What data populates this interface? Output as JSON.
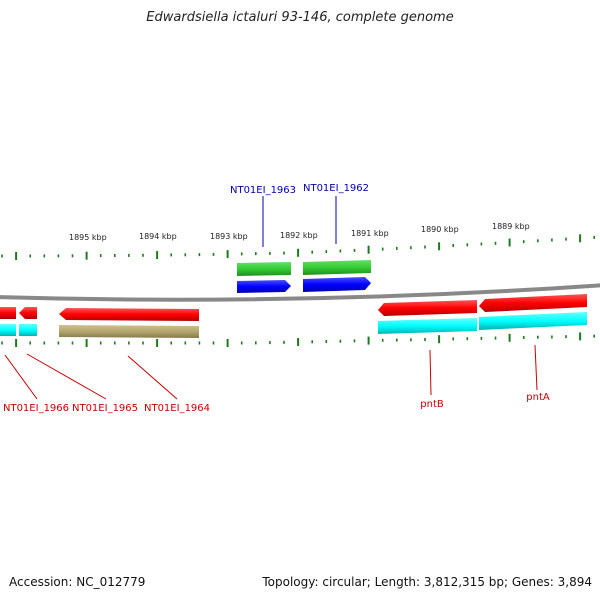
{
  "title": "Edwardsiella ictaluri 93-146, complete genome",
  "footer": {
    "accession": "Accession: NC_012779",
    "summary": "Topology: circular; Length: 3,812,315 bp; Genes: 3,894"
  },
  "ruler": [
    {
      "label": "1895 kbp",
      "kbp": 1895
    },
    {
      "label": "1894 kbp",
      "kbp": 1894
    },
    {
      "label": "1893 kbp",
      "kbp": 1893
    },
    {
      "label": "1892 kbp",
      "kbp": 1892
    },
    {
      "label": "1891 kbp",
      "kbp": 1891
    },
    {
      "label": "1890 kbp",
      "kbp": 1890
    },
    {
      "label": "1889 kbp",
      "kbp": 1889
    }
  ],
  "genes": [
    {
      "name": "NT01EI_1966",
      "color": "#cc0000"
    },
    {
      "name": "NT01EI_1965",
      "color": "#cc0000"
    },
    {
      "name": "NT01EI_1964",
      "color": "#cc0000"
    },
    {
      "name": "NT01EI_1963",
      "color": "#0000aa"
    },
    {
      "name": "NT01EI_1962",
      "color": "#0000aa"
    },
    {
      "name": "pntB",
      "color": "#cc0000"
    },
    {
      "name": "pntA",
      "color": "#cc0000"
    }
  ],
  "colors": {
    "reverse_gene": "#ff0000",
    "forward_gene": "#0000ff",
    "forward_rna": "#33cc33",
    "reverse_rna": "#00ffff",
    "pseudo": "#b3a66e",
    "backbone": "#888888",
    "tick": "#1f7a1f"
  }
}
